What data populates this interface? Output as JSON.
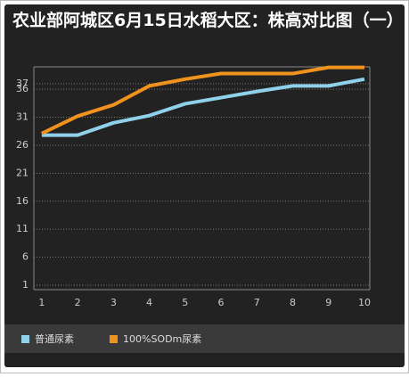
{
  "chart_data": {
    "type": "line",
    "title": "农业部阿城区6月15日水稻大区：株高对比图（一）",
    "x": [
      1,
      2,
      3,
      4,
      5,
      6,
      7,
      8,
      9,
      10
    ],
    "xlim": [
      0.78,
      10.15
    ],
    "xticks": [
      1,
      2,
      3,
      4,
      5,
      6,
      7,
      8,
      9,
      10
    ],
    "ylim": [
      1,
      40
    ],
    "yticks": [
      1,
      6,
      11,
      16,
      21,
      26,
      31,
      36,
      37
    ],
    "grid": true,
    "legend": "bottom",
    "series": [
      {
        "name": "普通尿素",
        "color": "#8fd0ea",
        "values": [
          27.8,
          27.8,
          30,
          31.3,
          33.4,
          34.5,
          35.6,
          36.6,
          36.6,
          37.8
        ]
      },
      {
        "name": "100%SODm尿素",
        "color": "#f0921e",
        "values": [
          28.1,
          31.2,
          33.2,
          36.6,
          37.8,
          38.8,
          38.8,
          38.8,
          39.9,
          39.9
        ]
      }
    ]
  }
}
